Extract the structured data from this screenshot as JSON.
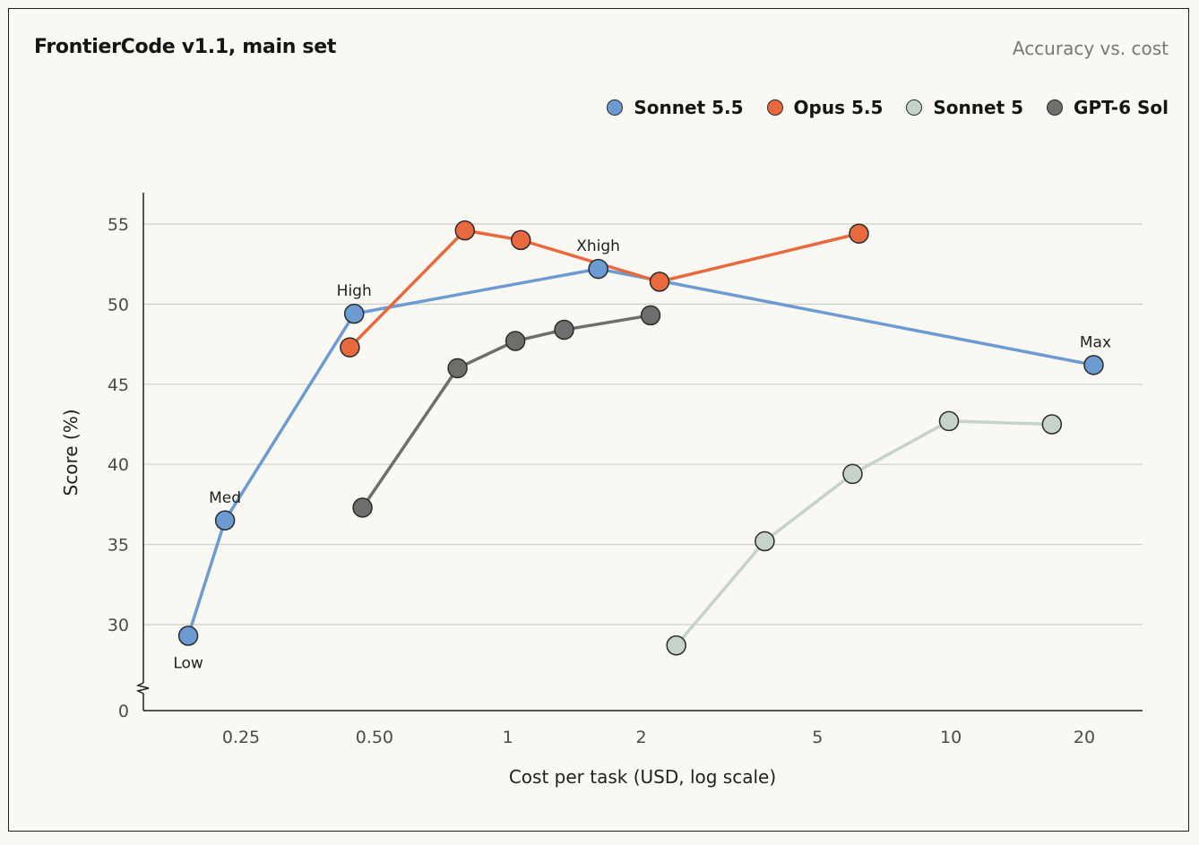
{
  "title": "FrontierCode v1.1, main set",
  "subtitle": "Accuracy vs. cost",
  "chart_data": {
    "type": "line",
    "xlabel": "Cost per task (USD, log scale)",
    "ylabel": "Score (%)",
    "x_scale": "log",
    "xlim": [
      0.15,
      28
    ],
    "ylim": [
      27,
      57
    ],
    "y_axis_break": true,
    "y_zero_tick": "0",
    "x_ticks": [
      0.25,
      0.5,
      1,
      2,
      5,
      10,
      20
    ],
    "x_tick_labels": [
      "0.25",
      "0.50",
      "1",
      "2",
      "5",
      "10",
      "20"
    ],
    "y_ticks": [
      30,
      35,
      40,
      45,
      50,
      55
    ],
    "y_tick_labels": [
      "30",
      "35",
      "40",
      "45",
      "50",
      "55"
    ],
    "grid": "horizontal",
    "legend_position": "top-right",
    "series": [
      {
        "name": "Sonnet 5.5",
        "color": "#6b9bd1",
        "x": [
          0.19,
          0.23,
          0.45,
          1.6,
          21
        ],
        "y": [
          29.3,
          36.5,
          49.4,
          52.2,
          46.2
        ],
        "labels": [
          "Low",
          "Med",
          "High",
          "Xhigh",
          "Max"
        ]
      },
      {
        "name": "Opus 5.5",
        "color": "#e8693e",
        "x": [
          0.44,
          0.8,
          1.07,
          2.2,
          6.2
        ],
        "y": [
          47.3,
          54.6,
          54.0,
          51.4,
          54.4
        ]
      },
      {
        "name": "Sonnet 5",
        "color": "#c5d3cb",
        "x": [
          2.4,
          3.8,
          6.0,
          9.9,
          16.9
        ],
        "y": [
          28.7,
          35.2,
          39.4,
          42.7,
          42.5
        ]
      },
      {
        "name": "GPT-6 Sol",
        "color": "#6e6e6c",
        "x": [
          0.47,
          0.77,
          1.04,
          1.34,
          2.1
        ],
        "y": [
          37.3,
          46.0,
          47.7,
          48.4,
          49.3
        ]
      }
    ]
  }
}
